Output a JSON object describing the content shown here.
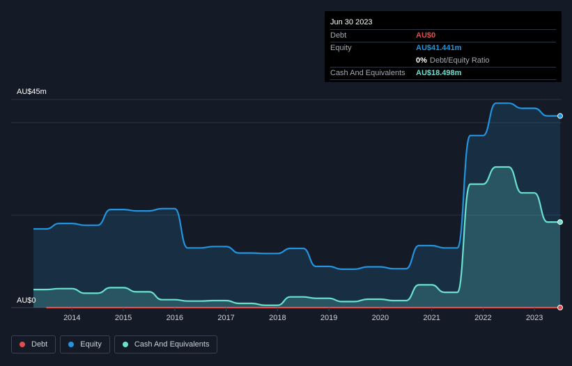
{
  "tooltip": {
    "date": "Jun 30 2023",
    "debt_label": "Debt",
    "debt_value": "AU$0",
    "equity_label": "Equity",
    "equity_value": "AU$41.441m",
    "ratio_value": "0%",
    "ratio_label": "Debt/Equity Ratio",
    "cash_label": "Cash And Equivalents",
    "cash_value": "AU$18.498m"
  },
  "legend": {
    "debt": "Debt",
    "equity": "Equity",
    "cash": "Cash And Equivalents"
  },
  "colors": {
    "background": "#151b26",
    "debt": "#e64c4c",
    "equity": "#2394df",
    "cash": "#6ae2cf",
    "grid": "#2b3240",
    "axis_text": "#d0d4da"
  },
  "chart_data": {
    "type": "area",
    "y_axis_labels": [
      "AU$45m",
      "AU$0"
    ],
    "ylim": [
      0,
      45
    ],
    "xlim": [
      2013.25,
      2023.5
    ],
    "x_ticks": [
      "2014",
      "2015",
      "2016",
      "2017",
      "2018",
      "2019",
      "2020",
      "2021",
      "2022",
      "2023"
    ],
    "grid": true,
    "legend_position": "bottom-left",
    "series": [
      {
        "name": "Equity",
        "points": [
          [
            2013.25,
            17.0
          ],
          [
            2013.5,
            17.0
          ],
          [
            2013.75,
            18.2
          ],
          [
            2014.0,
            18.2
          ],
          [
            2014.25,
            17.8
          ],
          [
            2014.5,
            17.8
          ],
          [
            2014.75,
            21.2
          ],
          [
            2015.0,
            21.2
          ],
          [
            2015.25,
            20.9
          ],
          [
            2015.5,
            20.9
          ],
          [
            2015.75,
            21.4
          ],
          [
            2016.0,
            21.4
          ],
          [
            2016.25,
            12.9
          ],
          [
            2016.5,
            12.9
          ],
          [
            2016.75,
            13.2
          ],
          [
            2017.0,
            13.2
          ],
          [
            2017.25,
            11.8
          ],
          [
            2017.5,
            11.8
          ],
          [
            2017.75,
            11.7
          ],
          [
            2018.0,
            11.7
          ],
          [
            2018.25,
            12.8
          ],
          [
            2018.5,
            12.8
          ],
          [
            2018.75,
            8.9
          ],
          [
            2019.0,
            8.9
          ],
          [
            2019.25,
            8.3
          ],
          [
            2019.5,
            8.3
          ],
          [
            2019.75,
            8.8
          ],
          [
            2020.0,
            8.8
          ],
          [
            2020.25,
            8.4
          ],
          [
            2020.5,
            8.4
          ],
          [
            2020.75,
            13.4
          ],
          [
            2021.0,
            13.4
          ],
          [
            2021.25,
            12.9
          ],
          [
            2021.5,
            12.9
          ],
          [
            2021.75,
            37.2
          ],
          [
            2022.0,
            37.2
          ],
          [
            2022.25,
            44.2
          ],
          [
            2022.5,
            44.2
          ],
          [
            2022.75,
            43.1
          ],
          [
            2023.0,
            43.1
          ],
          [
            2023.25,
            41.441
          ],
          [
            2023.5,
            41.441
          ]
        ]
      },
      {
        "name": "Cash And Equivalents",
        "points": [
          [
            2013.25,
            3.9
          ],
          [
            2013.5,
            3.9
          ],
          [
            2013.75,
            4.1
          ],
          [
            2014.0,
            4.1
          ],
          [
            2014.25,
            3.1
          ],
          [
            2014.5,
            3.1
          ],
          [
            2014.75,
            4.3
          ],
          [
            2015.0,
            4.3
          ],
          [
            2015.25,
            3.4
          ],
          [
            2015.5,
            3.4
          ],
          [
            2015.75,
            1.7
          ],
          [
            2016.0,
            1.7
          ],
          [
            2016.25,
            1.4
          ],
          [
            2016.5,
            1.4
          ],
          [
            2016.75,
            1.5
          ],
          [
            2017.0,
            1.5
          ],
          [
            2017.25,
            0.9
          ],
          [
            2017.5,
            0.9
          ],
          [
            2017.75,
            0.5
          ],
          [
            2018.0,
            0.5
          ],
          [
            2018.25,
            2.3
          ],
          [
            2018.5,
            2.3
          ],
          [
            2018.75,
            2.0
          ],
          [
            2019.0,
            2.0
          ],
          [
            2019.25,
            1.3
          ],
          [
            2019.5,
            1.3
          ],
          [
            2019.75,
            1.8
          ],
          [
            2020.0,
            1.8
          ],
          [
            2020.25,
            1.5
          ],
          [
            2020.5,
            1.5
          ],
          [
            2020.75,
            4.9
          ],
          [
            2021.0,
            4.9
          ],
          [
            2021.25,
            3.3
          ],
          [
            2021.5,
            3.3
          ],
          [
            2021.75,
            26.7
          ],
          [
            2022.0,
            26.7
          ],
          [
            2022.25,
            30.4
          ],
          [
            2022.5,
            30.4
          ],
          [
            2022.75,
            24.8
          ],
          [
            2023.0,
            24.8
          ],
          [
            2023.25,
            18.498
          ],
          [
            2023.5,
            18.498
          ]
        ]
      },
      {
        "name": "Debt",
        "points": [
          [
            2013.5,
            0
          ],
          [
            2014.0,
            0
          ],
          [
            2015.0,
            0
          ],
          [
            2016.0,
            0
          ],
          [
            2017.0,
            0
          ],
          [
            2018.0,
            0
          ],
          [
            2019.0,
            0
          ],
          [
            2020.0,
            0
          ],
          [
            2021.0,
            0
          ],
          [
            2022.0,
            0
          ],
          [
            2023.0,
            0
          ],
          [
            2023.5,
            0
          ]
        ]
      }
    ]
  }
}
